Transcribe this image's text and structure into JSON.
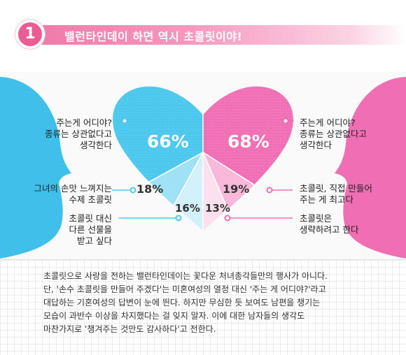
{
  "header": {
    "number": "1",
    "title": "밸런타인데이 하면 역시 초콜릿이야!"
  },
  "colors": {
    "blue": "#4cc8ef",
    "pink": "#f06fb4",
    "accent": "#ee5b94"
  },
  "chart_data": {
    "type": "pie",
    "charts": [
      {
        "side": "left",
        "color": "#4cc8ef",
        "values": [
          66,
          18,
          16
        ],
        "labels": [
          "주는게 어디야?\n종류는 상관없다고\n생각한다",
          "그녀의 손맛 느껴지는\n수제 초콜릿",
          "초콜릿 대신\n다른 선물을\n받고 싶다"
        ],
        "value_labels": [
          "66%",
          "18%",
          "16%"
        ]
      },
      {
        "side": "right",
        "color": "#f06fb4",
        "values": [
          68,
          19,
          13
        ],
        "labels": [
          "주는게 어디야?\n종류는 상관없다고\n생각한다",
          "초콜릿, 직접 만들어\n주는 게 최고다",
          "초콜릿은\n생략하려고 한다"
        ],
        "value_labels": [
          "68%",
          "19%",
          "13%"
        ]
      }
    ]
  },
  "body": {
    "lines": [
      "초콜릿으로 사랑을 전하는 밸런타인데이는 꽃다운 처녀총각들만의 행사가 아니다.",
      "단, '손수 초콜릿을 만들어 주겠다'는 미혼여성의 열정 대신 '주는 게 어디야?'라고",
      "대답하는 기혼여성의 답변이 눈에 띈다. 하지만 무심한 듯 보여도 남편을 챙기는",
      "모습이 과반수 이상을 차지했다는 걸 잊지 말자. 이에 대한 남자들의 생각도",
      "마찬가지로 '챙겨주는 것만도 감사하다'고 전한다."
    ]
  }
}
